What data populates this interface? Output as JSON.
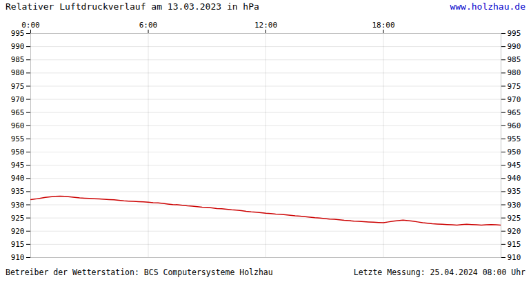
{
  "chart_data": {
    "type": "line",
    "title": "Relativer Luftdruckverlauf am 13.03.2023 in hPa",
    "annotations": [
      "www.holzhau.de",
      "Betreiber der Wetterstation: BCS Computersysteme Holzhau",
      "Letzte Messung: 25.04.2024 08:00 Uhr"
    ],
    "x": [
      0.0,
      0.25,
      0.5,
      0.75,
      1.0,
      1.25,
      1.5,
      1.75,
      2.0,
      2.25,
      2.5,
      2.75,
      3.0,
      3.25,
      3.5,
      3.75,
      4.0,
      4.25,
      4.5,
      4.75,
      5.0,
      5.25,
      5.5,
      5.75,
      6.0,
      6.25,
      6.5,
      6.75,
      7.0,
      7.25,
      7.5,
      7.75,
      8.0,
      8.25,
      8.5,
      8.75,
      9.0,
      9.25,
      9.5,
      9.75,
      10.0,
      10.25,
      10.5,
      10.75,
      11.0,
      11.25,
      11.5,
      11.75,
      12.0,
      12.25,
      12.5,
      12.75,
      13.0,
      13.25,
      13.5,
      13.75,
      14.0,
      14.25,
      14.5,
      14.75,
      15.0,
      15.25,
      15.5,
      15.75,
      16.0,
      16.25,
      16.5,
      16.75,
      17.0,
      17.25,
      17.5,
      17.75,
      18.0,
      18.25,
      18.5,
      18.75,
      19.0,
      19.25,
      19.5,
      19.75,
      20.0,
      20.25,
      20.5,
      20.75,
      21.0,
      21.25,
      21.5,
      21.75,
      22.0,
      22.25,
      22.5,
      22.75,
      23.0,
      23.25,
      23.5,
      23.75,
      24.0
    ],
    "values": [
      932.0,
      932.2,
      932.5,
      932.8,
      933.0,
      933.2,
      933.3,
      933.2,
      933.0,
      932.8,
      932.6,
      932.5,
      932.4,
      932.3,
      932.2,
      932.1,
      932.0,
      931.9,
      931.7,
      931.5,
      931.4,
      931.3,
      931.2,
      931.1,
      931.0,
      930.8,
      930.7,
      930.5,
      930.3,
      930.1,
      930.0,
      929.8,
      929.6,
      929.5,
      929.3,
      929.1,
      929.0,
      928.8,
      928.6,
      928.5,
      928.3,
      928.1,
      928.0,
      927.8,
      927.5,
      927.3,
      927.2,
      927.0,
      926.8,
      926.7,
      926.5,
      926.4,
      926.2,
      926.0,
      925.8,
      925.7,
      925.5,
      925.3,
      925.1,
      925.0,
      924.8,
      924.6,
      924.5,
      924.3,
      924.1,
      924.0,
      923.8,
      923.7,
      923.6,
      923.5,
      923.4,
      923.3,
      923.2,
      923.5,
      923.8,
      924.0,
      924.2,
      924.0,
      923.8,
      923.5,
      923.2,
      923.0,
      922.8,
      922.7,
      922.6,
      922.5,
      922.4,
      922.3,
      922.5,
      922.6,
      922.5,
      922.4,
      922.3,
      922.4,
      922.5,
      922.4,
      922.3
    ],
    "color": "#cc0000",
    "xlim": [
      0,
      24
    ],
    "xticks": [
      {
        "value": 0,
        "label": "0:00"
      },
      {
        "value": 6,
        "label": "6:00"
      },
      {
        "value": 12,
        "label": "12:00"
      },
      {
        "value": 18,
        "label": "18:00"
      }
    ],
    "ylim": [
      910,
      995
    ],
    "yticks": [
      910,
      915,
      920,
      925,
      930,
      935,
      940,
      945,
      950,
      955,
      960,
      965,
      970,
      975,
      980,
      985,
      990,
      995
    ],
    "grid": true
  }
}
